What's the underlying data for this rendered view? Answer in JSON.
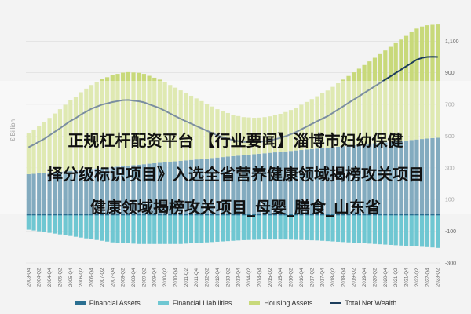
{
  "headline": {
    "line1": "正规杠杆配资平台 【行业要闻】淄博市妇幼保健",
    "line2": "择分级标识项目》入选全省营养健康领域揭榜攻关项目",
    "line3": "健康领域揭榜攻关项目_母婴_膳食_山东省"
  },
  "chart_data": {
    "type": "bar",
    "ylabel": "€ Billion",
    "ylim": [
      -300,
      1250
    ],
    "yticks": [
      -300,
      -100,
      100,
      300,
      500,
      700,
      900,
      1100
    ],
    "ytick_labels": [
      "-300",
      "-100",
      "100",
      "300",
      "500",
      "700",
      "900",
      "1,100"
    ],
    "start_year": 2003,
    "start_quarter": 4,
    "n_quarters": 79,
    "grid": true,
    "legend_position": "bottom",
    "series": [
      {
        "name": "Financial Assets",
        "color": "#2a6f91",
        "values": [
          260,
          262,
          265,
          268,
          270,
          273,
          275,
          278,
          281,
          284,
          287,
          290,
          293,
          296,
          299,
          302,
          305,
          308,
          311,
          314,
          317,
          320,
          323,
          326,
          329,
          332,
          335,
          338,
          341,
          344,
          347,
          350,
          353,
          356,
          359,
          362,
          365,
          368,
          371,
          374,
          377,
          380,
          383,
          386,
          389,
          392,
          395,
          398,
          401,
          404,
          407,
          410,
          413,
          416,
          419,
          422,
          425,
          428,
          431,
          434,
          437,
          440,
          443,
          446,
          449,
          452,
          455,
          458,
          461,
          464,
          467,
          470,
          473,
          476,
          479,
          482,
          485,
          488,
          490
        ]
      },
      {
        "name": "Financial Liabilities",
        "color": "#6fc7d2",
        "values": [
          -90,
          -95,
          -100,
          -105,
          -110,
          -115,
          -120,
          -125,
          -130,
          -135,
          -140,
          -145,
          -150,
          -155,
          -160,
          -165,
          -170,
          -172,
          -174,
          -176,
          -178,
          -180,
          -180,
          -180,
          -180,
          -180,
          -180,
          -180,
          -180,
          -180,
          -178,
          -176,
          -174,
          -172,
          -170,
          -168,
          -166,
          -164,
          -162,
          -160,
          -158,
          -156,
          -155,
          -154,
          -153,
          -152,
          -152,
          -152,
          -152,
          -152,
          -153,
          -154,
          -155,
          -156,
          -157,
          -158,
          -160,
          -162,
          -164,
          -166,
          -168,
          -170,
          -172,
          -174,
          -176,
          -178,
          -180,
          -182,
          -184,
          -186,
          -188,
          -190,
          -192,
          -194,
          -196,
          -198,
          -200,
          -202,
          -205
        ]
      },
      {
        "name": "Housing Assets",
        "color": "#c8d97a",
        "values": [
          260,
          280,
          300,
          320,
          345,
          370,
          395,
          420,
          445,
          465,
          490,
          510,
          530,
          545,
          560,
          570,
          580,
          585,
          590,
          590,
          585,
          580,
          570,
          555,
          540,
          525,
          505,
          485,
          465,
          445,
          425,
          405,
          385,
          365,
          345,
          325,
          305,
          290,
          275,
          260,
          250,
          240,
          235,
          230,
          228,
          228,
          230,
          235,
          240,
          248,
          258,
          270,
          285,
          300,
          315,
          330,
          345,
          360,
          380,
          400,
          420,
          440,
          460,
          480,
          500,
          520,
          540,
          560,
          580,
          600,
          620,
          640,
          660,
          680,
          700,
          710,
          715,
          715,
          715
        ]
      },
      {
        "name": "Total Net Wealth",
        "color": "#1d3d5c",
        "values": [
          430,
          447,
          465,
          483,
          505,
          528,
          550,
          573,
          596,
          614,
          637,
          655,
          673,
          686,
          699,
          707,
          715,
          721,
          727,
          728,
          724,
          720,
          713,
          701,
          689,
          677,
          660,
          643,
          626,
          609,
          594,
          579,
          564,
          549,
          534,
          519,
          504,
          494,
          484,
          474,
          469,
          464,
          463,
          462,
          464,
          468,
          473,
          481,
          489,
          500,
          512,
          526,
          543,
          560,
          577,
          594,
          610,
          626,
          647,
          668,
          689,
          710,
          731,
          752,
          773,
          794,
          815,
          836,
          857,
          878,
          899,
          920,
          941,
          962,
          983,
          994,
          1000,
          1001,
          1000
        ]
      }
    ]
  }
}
